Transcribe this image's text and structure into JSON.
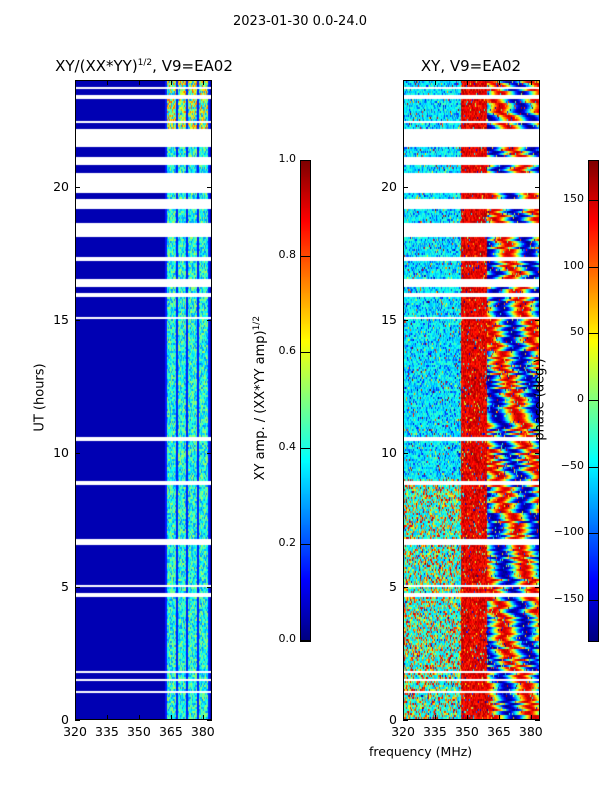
{
  "suptitle": "2023-01-30 0.0-24.0",
  "chart_data": [
    {
      "type": "heatmap",
      "title_main": "XY/(XX*YY)",
      "title_sup": "1/2",
      "title_tail": ", V9=EA02",
      "xlabel": "frequency (MHz)",
      "ylabel": "UT (hours)",
      "xlim": [
        320,
        384.3
      ],
      "ylim": [
        0,
        24
      ],
      "xticks": [
        "320",
        "335",
        "350",
        "365",
        "380"
      ],
      "xtick_values": [
        320,
        335,
        350,
        365,
        380
      ],
      "yticks": [
        "0",
        "5",
        "10",
        "15",
        "20"
      ],
      "ytick_values": [
        0,
        5,
        10,
        15,
        20
      ],
      "colormap": "jet",
      "colorbar": {
        "label_main": "XY amp. / (XX*YY amp)",
        "label_sup": "1/2",
        "range": [
          0,
          1
        ],
        "ticks": [
          "0.0",
          "0.2",
          "0.4",
          "0.6",
          "0.8",
          "1.0"
        ],
        "tick_values": [
          0,
          0.2,
          0.4,
          0.6,
          0.8,
          1.0
        ]
      },
      "background_value": 0.05,
      "bright_band_mhz": [
        362,
        383
      ],
      "bright_band_value_range": [
        0.25,
        0.8
      ]
    },
    {
      "type": "heatmap",
      "title": "XY, V9=EA02",
      "xlim": [
        320,
        384.3
      ],
      "ylim": [
        0,
        24
      ],
      "xticks": [
        "320",
        "335",
        "350",
        "365",
        "380"
      ],
      "xtick_values": [
        320,
        335,
        350,
        365,
        380
      ],
      "yticks": [
        "0",
        "5",
        "10",
        "15",
        "20"
      ],
      "ytick_values": [
        0,
        5,
        10,
        15,
        20
      ],
      "colormap": "jet",
      "colorbar": {
        "label": "phase (deg.)",
        "range": [
          -180,
          180
        ],
        "ticks": [
          "150",
          "100",
          "50",
          "0",
          "−50",
          "−100",
          "−150"
        ],
        "tick_values": [
          150,
          100,
          50,
          0,
          -50,
          -100,
          -150
        ]
      }
    }
  ],
  "flagged_ut_hours": [
    [
      0.95,
      1.05
    ],
    [
      1.4,
      1.5
    ],
    [
      1.72,
      1.8
    ],
    [
      4.55,
      4.7
    ],
    [
      4.92,
      5.0
    ],
    [
      6.55,
      6.75
    ],
    [
      8.75,
      8.95
    ],
    [
      10.45,
      10.55
    ],
    [
      14.98,
      15.1
    ],
    [
      15.8,
      15.95
    ],
    [
      16.2,
      16.5
    ],
    [
      17.15,
      17.3
    ],
    [
      18.1,
      18.6
    ],
    [
      19.1,
      19.5
    ],
    [
      19.75,
      20.45
    ],
    [
      20.75,
      21.05
    ],
    [
      21.45,
      22.1
    ],
    [
      22.35,
      22.45
    ],
    [
      23.25,
      23.4
    ],
    [
      23.6,
      23.7
    ]
  ]
}
